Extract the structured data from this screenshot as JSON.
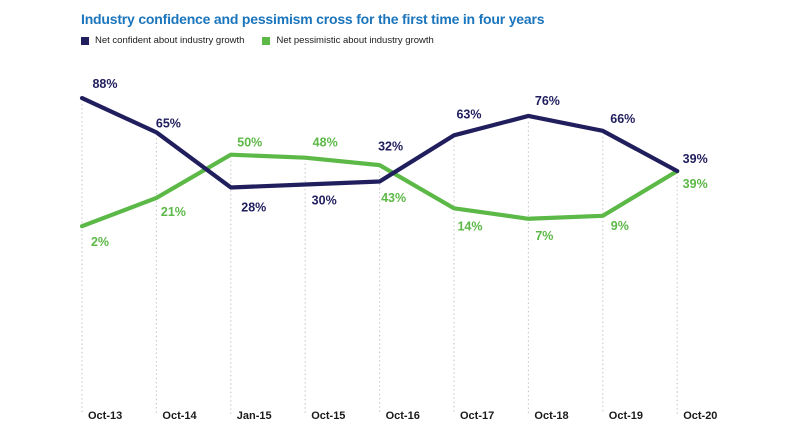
{
  "title": {
    "text": "Industry confidence and pessimism cross for the first time in four years"
  },
  "colors": {
    "title_blue": "#1b75bc",
    "navy": "#211e5e",
    "green": "#5cb947",
    "gridline": "#c6c6c6",
    "axis_text": "#1a1a1a",
    "background": "#ffffff"
  },
  "chart_data": {
    "type": "line",
    "x": [
      "Oct-13",
      "Oct-14",
      "Jan-15",
      "Oct-15",
      "Oct-16",
      "Oct-17",
      "Oct-18",
      "Oct-19",
      "Oct-20"
    ],
    "series": [
      {
        "name": "Net confident about industry growth",
        "color": "navy",
        "values": [
          88,
          65,
          28,
          30,
          32,
          63,
          76,
          66,
          39
        ],
        "labels": [
          "88%",
          "65%",
          "28%",
          "30%",
          "32%",
          "63%",
          "76%",
          "66%",
          "39%"
        ]
      },
      {
        "name": "Net pessimistic about industry growth",
        "color": "green",
        "values": [
          2,
          21,
          50,
          48,
          43,
          14,
          7,
          9,
          39
        ],
        "labels": [
          "2%",
          "21%",
          "50%",
          "48%",
          "43%",
          "14%",
          "7%",
          "9%",
          "39%"
        ]
      }
    ],
    "ylim": [
      0,
      100
    ],
    "y_axis_visible": false,
    "grid": "vertical-dotted",
    "legend_position": "top-left",
    "label_format": "percent"
  }
}
